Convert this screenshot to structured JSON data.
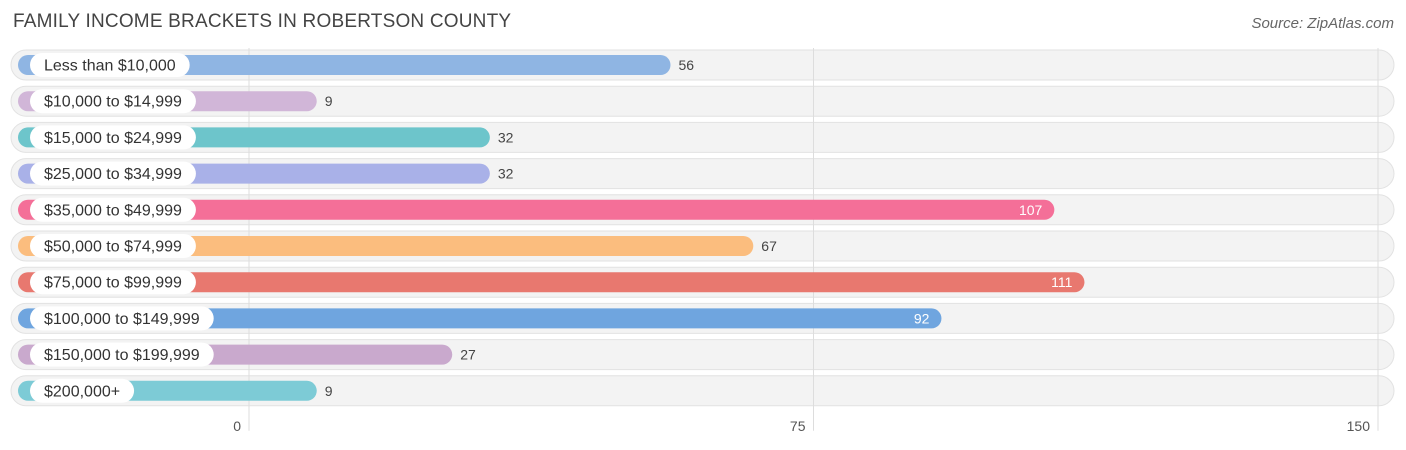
{
  "title": "FAMILY INCOME BRACKETS IN ROBERTSON COUNTY",
  "source": "Source: ZipAtlas.com",
  "chart_data": {
    "type": "bar",
    "orientation": "horizontal",
    "title": "FAMILY INCOME BRACKETS IN ROBERTSON COUNTY",
    "categories": [
      "Less than $10,000",
      "$10,000 to $14,999",
      "$15,000 to $24,999",
      "$25,000 to $34,999",
      "$35,000 to $49,999",
      "$50,000 to $74,999",
      "$75,000 to $99,999",
      "$100,000 to $149,999",
      "$150,000 to $199,999",
      "$200,000+"
    ],
    "values": [
      56,
      9,
      32,
      32,
      107,
      67,
      111,
      92,
      27,
      9
    ],
    "value_labels": [
      "56",
      "9",
      "32",
      "32",
      "107",
      "67",
      "111",
      "92",
      "27",
      "9"
    ],
    "colors": [
      "#8fb5e3",
      "#d1b6d8",
      "#6dc5cb",
      "#a9b1e8",
      "#f46f98",
      "#fbbd7e",
      "#e8786f",
      "#6fa5df",
      "#c9a9cd",
      "#7dcbd6"
    ],
    "xlim": [
      0,
      150
    ],
    "xticks": [
      0,
      75,
      150
    ],
    "xtick_labels": [
      "0",
      "75",
      "150"
    ],
    "grid": true
  }
}
